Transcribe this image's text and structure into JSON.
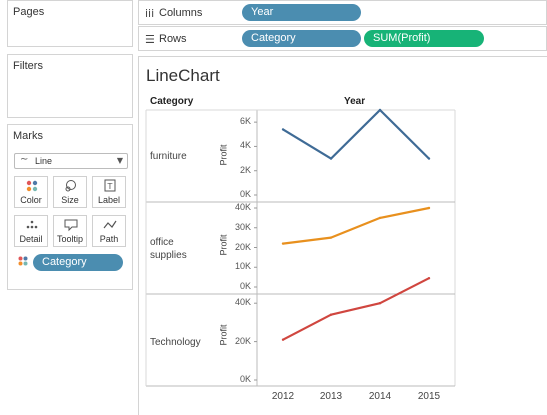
{
  "pages": {
    "title": "Pages"
  },
  "filters": {
    "title": "Filters"
  },
  "columns": {
    "icon": "iii",
    "label": "Columns",
    "pills": [
      "Year"
    ]
  },
  "rows": {
    "icon": "☰",
    "label": "Rows",
    "pills": [
      "Category",
      "SUM(Profit)"
    ]
  },
  "marks": {
    "title": "Marks",
    "mark_type": "Line",
    "buttons": [
      {
        "label": "Color",
        "icon": "color-icon"
      },
      {
        "label": "Size",
        "icon": "size-icon"
      },
      {
        "label": "Label",
        "icon": "label-icon"
      },
      {
        "label": "Detail",
        "icon": "detail-icon"
      },
      {
        "label": "Tooltip",
        "icon": "tooltip-icon"
      },
      {
        "label": "Path",
        "icon": "path-icon"
      }
    ],
    "field_pill": "Category"
  },
  "view": {
    "title": "LineChart",
    "row_header": "Category",
    "column_header": "Year"
  },
  "colors": {
    "furniture": "#3f6b96",
    "office": "#e8901e",
    "technology": "#d0463f",
    "pill_blue": "#4b8db0",
    "pill_green": "#17b377"
  },
  "chart_data": {
    "type": "line",
    "x": [
      "2012",
      "2013",
      "2014",
      "2015"
    ],
    "xlabel": "",
    "panes": [
      {
        "category": "furniture",
        "category_lines": [
          "furniture"
        ],
        "ylabel": "Profit",
        "ylim": [
          0,
          7000
        ],
        "ticks": [
          0,
          2000,
          4000,
          6000
        ],
        "tick_labels": [
          "0K",
          "2K",
          "4K",
          "6K"
        ],
        "values": [
          5400,
          3000,
          7000,
          3000
        ],
        "color": "#3f6b96"
      },
      {
        "category": "office supplies",
        "category_lines": [
          "office",
          "supplies"
        ],
        "ylabel": "Profit",
        "ylim": [
          0,
          40000
        ],
        "ticks": [
          0,
          10000,
          20000,
          30000,
          40000
        ],
        "tick_labels": [
          "0K",
          "10K",
          "20K",
          "30K",
          "40K"
        ],
        "values": [
          22000,
          25000,
          35000,
          40000
        ],
        "color": "#e8901e"
      },
      {
        "category": "Technology",
        "category_lines": [
          "Technology"
        ],
        "ylabel": "Profit",
        "ylim": [
          0,
          50000
        ],
        "ticks": [
          0,
          20000,
          40000
        ],
        "tick_labels": [
          "0K",
          "20K",
          "40K"
        ],
        "values": [
          21000,
          34000,
          40000,
          53000
        ],
        "color": "#d0463f"
      }
    ]
  }
}
